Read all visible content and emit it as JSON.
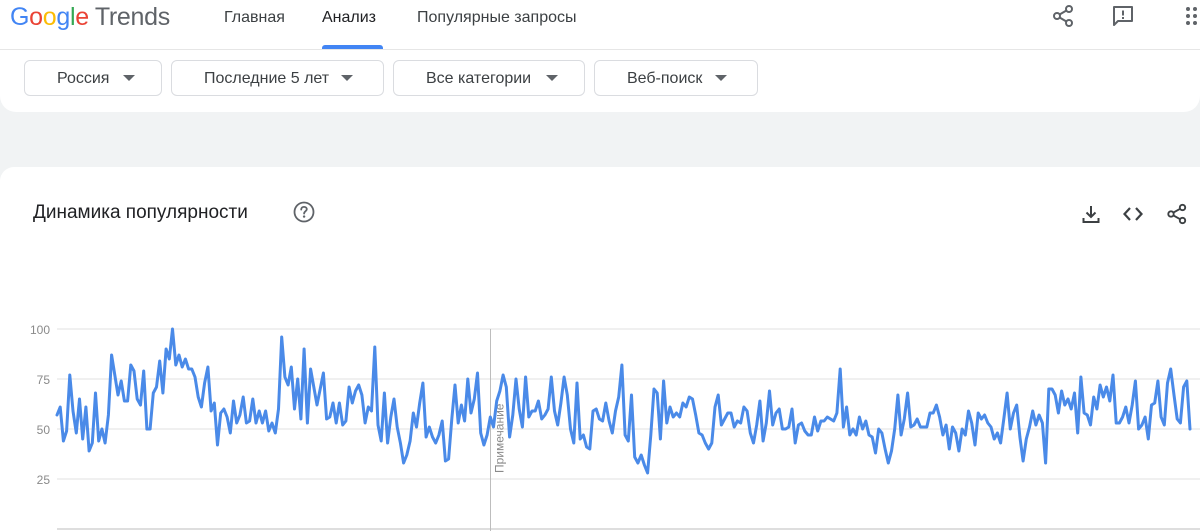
{
  "header": {
    "logo": {
      "google": [
        "G",
        "o",
        "o",
        "g",
        "l",
        "e"
      ],
      "product": "Trends"
    },
    "tabs": [
      {
        "label": "Главная",
        "active": false
      },
      {
        "label": "Анализ",
        "active": true
      },
      {
        "label": "Популярные запросы",
        "active": false
      }
    ],
    "icons": [
      "share-icon",
      "feedback-icon",
      "apps-icon"
    ]
  },
  "filters": {
    "region": "Россия",
    "period": "Последние 5 лет",
    "category": "Все категории",
    "search_type": "Веб-поиск"
  },
  "card": {
    "title": "Динамика популярности",
    "icons": [
      "help-icon",
      "download-icon",
      "embed-icon",
      "share-icon"
    ]
  },
  "colors": {
    "accent": "#4285f4",
    "line": "#4a8ae8",
    "grid": "#e0e0e0"
  },
  "chart_data": {
    "type": "line",
    "title": "Динамика популярности",
    "xlabel": "",
    "ylabel": "",
    "ylim": [
      0,
      100
    ],
    "yticks": [
      25,
      50,
      75,
      100
    ],
    "grid": true,
    "annotation": {
      "label": "Примечание",
      "at_index": 135
    },
    "series": [
      {
        "values": [
          57,
          61,
          44,
          49,
          77,
          59,
          48,
          65,
          45,
          61,
          39,
          43,
          68,
          44,
          50,
          43,
          57,
          87,
          77,
          67,
          74,
          64,
          64,
          82,
          79,
          65,
          62,
          79,
          50,
          50,
          68,
          71,
          84,
          68,
          90,
          85,
          100,
          82,
          87,
          81,
          85,
          80,
          80,
          76,
          66,
          61,
          73,
          81,
          59,
          63,
          42,
          58,
          60,
          56,
          48,
          64,
          53,
          57,
          66,
          53,
          54,
          65,
          53,
          59,
          53,
          59,
          49,
          53,
          48,
          60,
          96,
          76,
          72,
          81,
          60,
          75,
          55,
          90,
          53,
          80,
          71,
          62,
          70,
          78,
          55,
          56,
          63,
          53,
          63,
          52,
          54,
          71,
          63,
          69,
          72,
          67,
          53,
          61,
          59,
          91,
          52,
          44,
          68,
          43,
          56,
          65,
          51,
          43,
          33,
          37,
          44,
          58,
          51,
          63,
          73,
          46,
          51,
          46,
          43,
          47,
          54,
          34,
          35,
          55,
          72,
          53,
          62,
          54,
          75,
          58,
          65,
          78,
          48,
          42,
          47,
          56,
          51,
          64,
          69,
          77,
          71,
          46,
          57,
          75,
          60,
          51,
          76,
          56,
          59,
          59,
          64,
          55,
          57,
          60,
          76,
          59,
          52,
          63,
          76,
          67,
          50,
          43,
          73,
          45,
          47,
          41,
          40,
          59,
          60,
          55,
          54,
          63,
          54,
          48,
          59,
          66,
          82,
          47,
          44,
          67,
          36,
          33,
          37,
          32,
          28,
          47,
          70,
          68,
          45,
          74,
          53,
          61,
          56,
          58,
          56,
          63,
          61,
          66,
          65,
          57,
          48,
          47,
          43,
          40,
          43,
          61,
          67,
          52,
          55,
          58,
          58,
          51,
          54,
          53,
          61,
          59,
          48,
          43,
          52,
          64,
          44,
          53,
          69,
          52,
          58,
          60,
          50,
          50,
          51,
          60,
          43,
          52,
          53,
          49,
          47,
          47,
          56,
          49,
          54,
          54,
          56,
          55,
          54,
          58,
          80,
          51,
          61,
          47,
          50,
          47,
          56,
          50,
          54,
          47,
          46,
          38,
          50,
          48,
          40,
          33,
          39,
          50,
          67,
          47,
          55,
          68,
          51,
          52,
          55,
          51,
          51,
          51,
          58,
          58,
          62,
          56,
          47,
          52,
          40,
          51,
          48,
          39,
          50,
          47,
          59,
          53,
          42,
          58,
          55,
          57,
          53,
          51,
          45,
          48,
          43,
          55,
          68,
          50,
          58,
          62,
          46,
          34,
          45,
          51,
          59,
          52,
          57,
          53,
          33,
          70,
          70,
          67,
          58,
          69,
          62,
          65,
          60,
          68,
          48,
          76,
          58,
          57,
          52,
          66,
          60,
          72,
          66,
          71,
          64,
          77,
          53,
          53,
          56,
          61,
          53,
          62,
          74,
          50,
          52,
          56,
          45,
          62,
          63,
          74,
          56,
          52,
          73,
          80,
          67,
          55,
          53,
          71,
          74,
          50
        ]
      }
    ]
  }
}
